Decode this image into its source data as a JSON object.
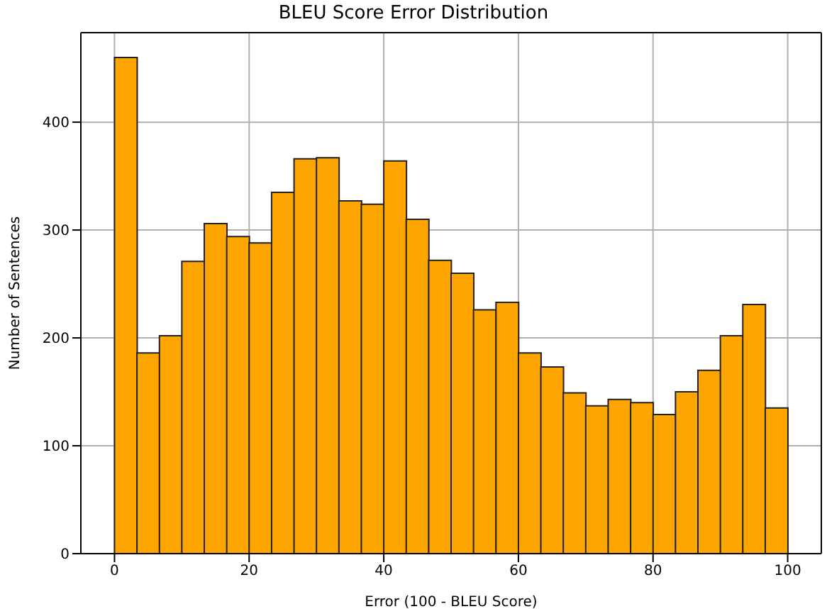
{
  "chart_data": {
    "type": "histogram",
    "title": "BLEU Score Error Distribution",
    "xlabel": "Error (100 - BLEU Score)",
    "ylabel": "Number of Sentences",
    "bins": [
      0,
      3.33,
      6.67,
      10,
      13.33,
      16.67,
      20,
      23.33,
      26.67,
      30,
      33.33,
      36.67,
      40,
      43.33,
      46.67,
      50,
      53.33,
      56.67,
      60,
      63.33,
      66.67,
      70,
      73.33,
      76.67,
      80,
      83.33,
      86.67,
      90,
      93.33,
      96.67,
      100
    ],
    "values": [
      460,
      186,
      202,
      271,
      306,
      294,
      288,
      335,
      366,
      367,
      327,
      324,
      364,
      310,
      272,
      260,
      226,
      233,
      186,
      173,
      149,
      137,
      143,
      140,
      129,
      150,
      170,
      202,
      231,
      135
    ],
    "color": "#ffa500",
    "xlim": [
      -5,
      105
    ],
    "ylim": [
      0,
      483
    ],
    "xticks": [
      0,
      20,
      40,
      60,
      80,
      100
    ],
    "yticks": [
      0,
      100,
      200,
      300,
      400
    ],
    "grid": true
  }
}
